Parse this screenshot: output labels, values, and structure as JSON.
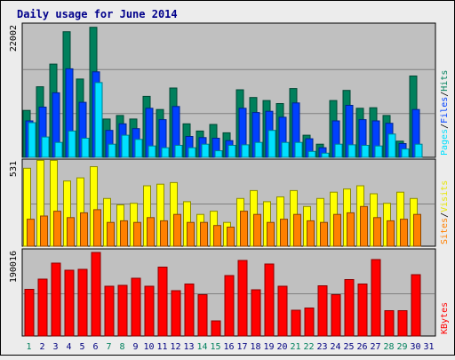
{
  "chart_data": {
    "type": "bar",
    "title": "Daily usage for June 2014",
    "days": [
      "1",
      "2",
      "3",
      "4",
      "5",
      "6",
      "7",
      "8",
      "9",
      "10",
      "11",
      "12",
      "13",
      "14",
      "15",
      "16",
      "17",
      "18",
      "19",
      "20",
      "21",
      "22",
      "23",
      "24",
      "25",
      "26",
      "27",
      "28",
      "29",
      "30",
      "31"
    ],
    "weekend_days": [
      "1",
      "7",
      "8",
      "14",
      "15",
      "21",
      "22",
      "28",
      "29"
    ],
    "panels": [
      {
        "id": "hits",
        "ymax_label": "22002",
        "ymax": 22002,
        "legend": [
          {
            "label": "Pages",
            "color": "#00e0ff"
          },
          {
            "label": "Files",
            "color": "#0040ff"
          },
          {
            "label": "Hits",
            "color": "#00805c"
          }
        ],
        "series": [
          {
            "name": "Hits",
            "color": "#00805c",
            "values": [
              7850,
              11800,
              15600,
              21000,
              13100,
              21750,
              6400,
              7000,
              6400,
              10200,
              8000,
              11600,
              5600,
              4400,
              5500,
              4100,
              11300,
              10000,
              9500,
              9000,
              11500,
              3700,
              2200,
              9500,
              11200,
              8200,
              8300,
              7000,
              2700,
              13600,
              null
            ]
          },
          {
            "name": "Files",
            "color": "#0040ff",
            "values": [
              6100,
              8400,
              10800,
              14800,
              9200,
              14300,
              4500,
              5600,
              4800,
              8200,
              6300,
              8500,
              3500,
              3300,
              3200,
              2800,
              8200,
              7500,
              7700,
              6700,
              9100,
              3100,
              1600,
              6100,
              8700,
              6300,
              6100,
              5700,
              2300,
              8000,
              null
            ]
          },
          {
            "name": "Pages",
            "color": "#00e0ff",
            "values": [
              5800,
              3400,
              2500,
              4400,
              3200,
              12500,
              2200,
              3700,
              3000,
              1900,
              1600,
              2000,
              1600,
              2200,
              1100,
              2000,
              2100,
              2500,
              4500,
              2500,
              2500,
              1000,
              700,
              2200,
              2100,
              2000,
              1900,
              3900,
              1400,
              2200,
              null
            ]
          }
        ]
      },
      {
        "id": "visits",
        "ymax_label": "531",
        "ymax": 531,
        "legend": [
          {
            "label": "Sites",
            "color": "#ff8000"
          },
          {
            "label": "Visits",
            "color": "#ffff00"
          }
        ],
        "series": [
          {
            "name": "Visits",
            "color": "#ffff00",
            "values": [
              490,
              540,
              540,
              410,
              430,
              500,
              300,
              260,
              270,
              380,
              390,
              400,
              280,
              200,
              220,
              150,
              300,
              350,
              280,
              310,
              350,
              250,
              300,
              340,
              360,
              380,
              330,
              270,
              340,
              300,
              null
            ]
          },
          {
            "name": "Sites",
            "color": "#ff8000",
            "values": [
              170,
              190,
              220,
              180,
              210,
              230,
              150,
              160,
              150,
              180,
              160,
              200,
              150,
              150,
              130,
              120,
              220,
              200,
              150,
              170,
              200,
              160,
              150,
              200,
              210,
              250,
              180,
              160,
              170,
              200,
              null
            ]
          }
        ]
      },
      {
        "id": "kbytes",
        "ymax_label": "190016",
        "ymax": 190016,
        "legend": [
          {
            "label": "KBytes",
            "color": "#ff0000"
          }
        ],
        "series": [
          {
            "name": "KBytes",
            "color": "#ff0000",
            "values": [
              105000,
              128000,
              164000,
              148000,
              150000,
              188000,
              112000,
              114000,
              130000,
              112000,
              155000,
              102000,
              117000,
              93000,
              34000,
              136000,
              170000,
              104000,
              162000,
              112000,
              58000,
              63000,
              113000,
              93000,
              127000,
              117000,
              172000,
              57000,
              57000,
              138000,
              null
            ]
          }
        ]
      }
    ]
  }
}
